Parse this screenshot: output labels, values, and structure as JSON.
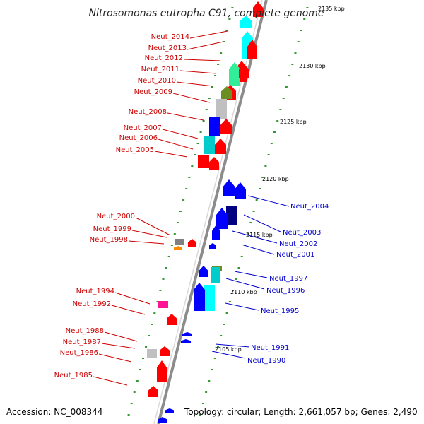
{
  "title": "Nitrosomonas eutropha C91, complete genome",
  "footer": {
    "accession": "Accession: NC_008344",
    "topology": "Topology: circular; Length: 2,661,057 bp; Genes: 2,490"
  },
  "colors": {
    "backbone": "#8c8c8c",
    "left_label": "#cc0000",
    "right_label": "#0000cc",
    "tick": "#339933"
  },
  "kbp_markers": [
    "2135 kbp",
    "2130 kbp",
    "2125 kbp",
    "2120 kbp",
    "2115 kbp",
    "2110 kbp",
    "2105 kbp"
  ],
  "left_genes": [
    {
      "label": "Neut_2014",
      "color": "#ff0000"
    },
    {
      "label": "Neut_2013",
      "color": "#00ffff"
    },
    {
      "label": "Neut_2012",
      "color": "#ff0000"
    },
    {
      "label": "Neut_2011",
      "color": "#33ee99"
    },
    {
      "label": "Neut_2010",
      "color": "#ff0000"
    },
    {
      "label": "Neut_2009",
      "color": "#6b8e23"
    },
    {
      "label": "Neut_2008",
      "color": "#c0c0c0"
    },
    {
      "label": "Neut_2007",
      "color": "#0000ff"
    },
    {
      "label": "Neut_2006",
      "color": "#00cccc"
    },
    {
      "label": "Neut_2005",
      "color": "#ff0000"
    },
    {
      "label": "Neut_2000",
      "color": "#808080"
    },
    {
      "label": "Neut_1999",
      "color": "#ff0000"
    },
    {
      "label": "Neut_1998",
      "color": "#ff8c00"
    },
    {
      "label": "Neut_1994",
      "color": "#ff1493"
    },
    {
      "label": "Neut_1992",
      "color": "#ff0000"
    },
    {
      "label": "Neut_1988",
      "color": "#ff0000"
    },
    {
      "label": "Neut_1987",
      "color": "#c0c0c0"
    },
    {
      "label": "Neut_1986",
      "color": "#ff0000"
    },
    {
      "label": "Neut_1985",
      "color": "#ff0000"
    }
  ],
  "right_genes": [
    {
      "label": "Neut_2004",
      "color": "#0000ff"
    },
    {
      "label": "Neut_2003",
      "color": "#000080"
    },
    {
      "label": "Neut_2002",
      "color": "#0000ff"
    },
    {
      "label": "Neut_2001",
      "color": "#0000ff"
    },
    {
      "label": "Neut_1997",
      "color": "#6b8e23"
    },
    {
      "label": "Neut_1996",
      "color": "#00cccc"
    },
    {
      "label": "Neut_1995",
      "color": "#00ffff"
    },
    {
      "label": "Neut_1991",
      "color": "#0000ff"
    },
    {
      "label": "Neut_1990",
      "color": "#0000ff"
    }
  ]
}
